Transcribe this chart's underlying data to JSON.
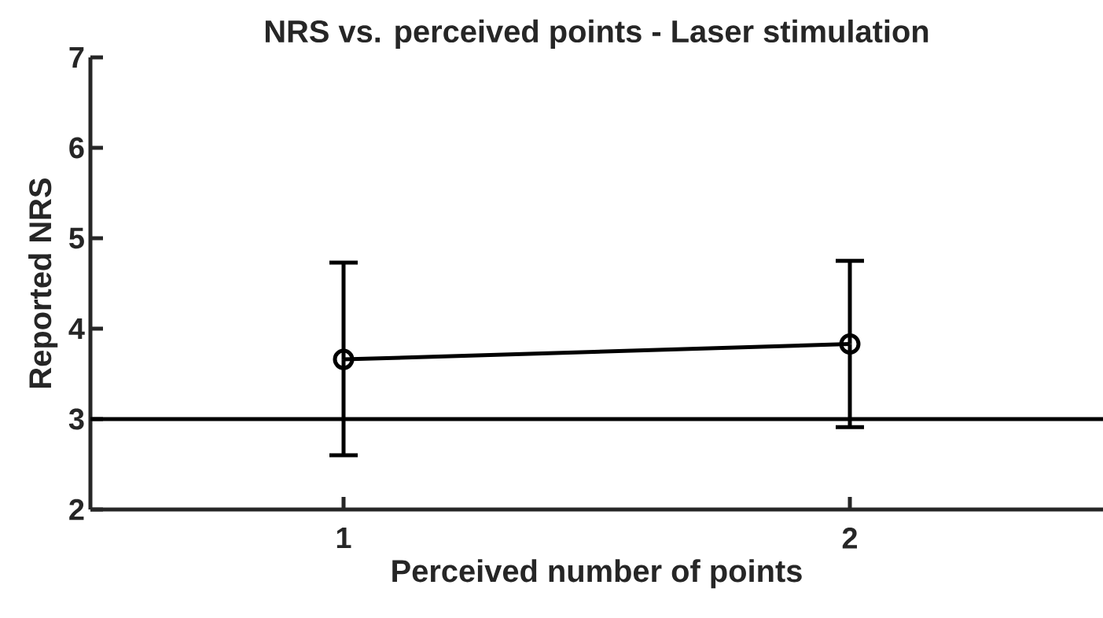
{
  "chart_data": {
    "type": "line",
    "title": "NRS vs. perceived points - Laser stimulation",
    "xlabel": "Perceived number of points",
    "ylabel": "Reported NRS",
    "x": [
      1,
      2
    ],
    "series": [
      {
        "color": "#000000",
        "values": [
          3.66,
          3.83
        ],
        "errors": [
          [
            2.6,
            4.73
          ],
          [
            2.91,
            4.75
          ]
        ]
      }
    ],
    "xlim": [
      0.5,
      2.5
    ],
    "xticks": [
      1,
      2
    ],
    "ylim": [
      2,
      7
    ],
    "yticks": [
      2,
      3,
      4,
      5,
      6,
      7
    ],
    "ref_lines": [
      {
        "axis": "y",
        "value": 3,
        "color": "#000000"
      }
    ],
    "marker": "circle",
    "line_style": "solid",
    "grid": false
  }
}
